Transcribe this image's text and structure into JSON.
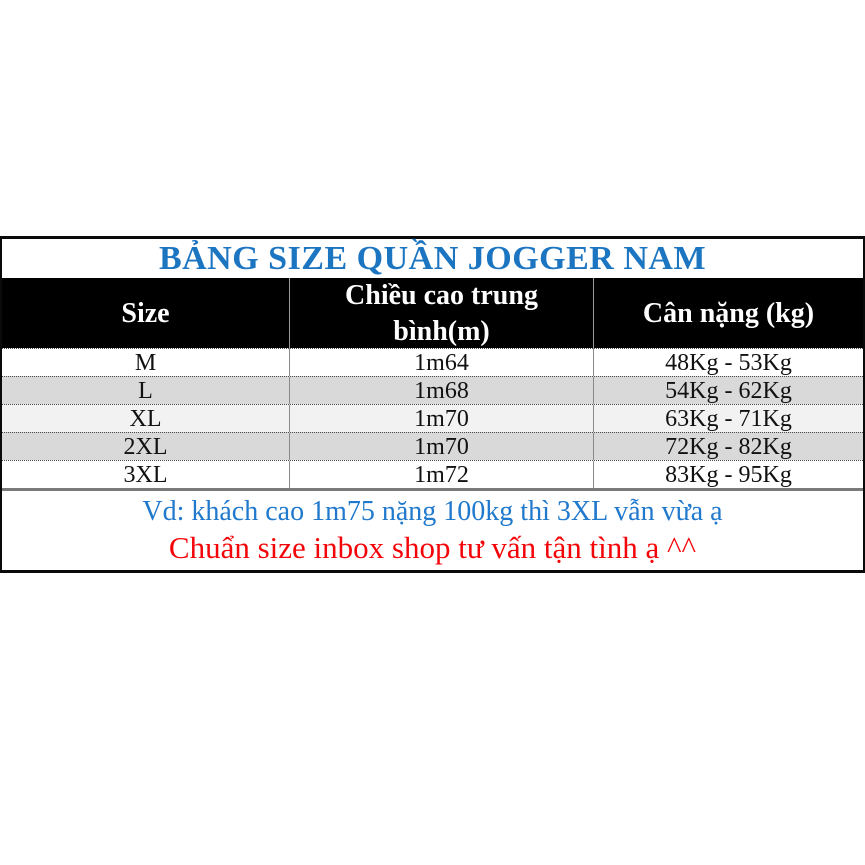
{
  "size_chart": {
    "title": "BẢNG SIZE QUẦN JOGGER NAM",
    "columns": [
      {
        "label": "Size"
      },
      {
        "label": "Chiều cao trung bình(m)"
      },
      {
        "label": "Cân nặng (kg)"
      }
    ],
    "rows": [
      {
        "size": "M",
        "height": "1m64",
        "weight": "48Kg - 53Kg"
      },
      {
        "size": "L",
        "height": "1m68",
        "weight": "54Kg - 62Kg"
      },
      {
        "size": "XL",
        "height": "1m70",
        "weight": "63Kg - 71Kg"
      },
      {
        "size": "2XL",
        "height": "1m70",
        "weight": "72Kg - 82Kg"
      },
      {
        "size": "3XL",
        "height": "1m72",
        "weight": "83Kg - 95Kg"
      }
    ],
    "notes": {
      "example": "Vd: khách cao 1m75 nặng 100kg thì 3XL vẫn vừa ạ",
      "advice": "Chuẩn size inbox shop tư vấn tận tình ạ ^^"
    },
    "colors": {
      "title_blue": "#1b75c1",
      "note_blue": "#2079cc",
      "note_red": "#f40408",
      "header_bg": "#000000",
      "header_text": "#ffffff",
      "row_gray": "#d9d9d9",
      "row_light_gray": "#f2f2f2",
      "border_black": "#0a0a0a"
    }
  }
}
